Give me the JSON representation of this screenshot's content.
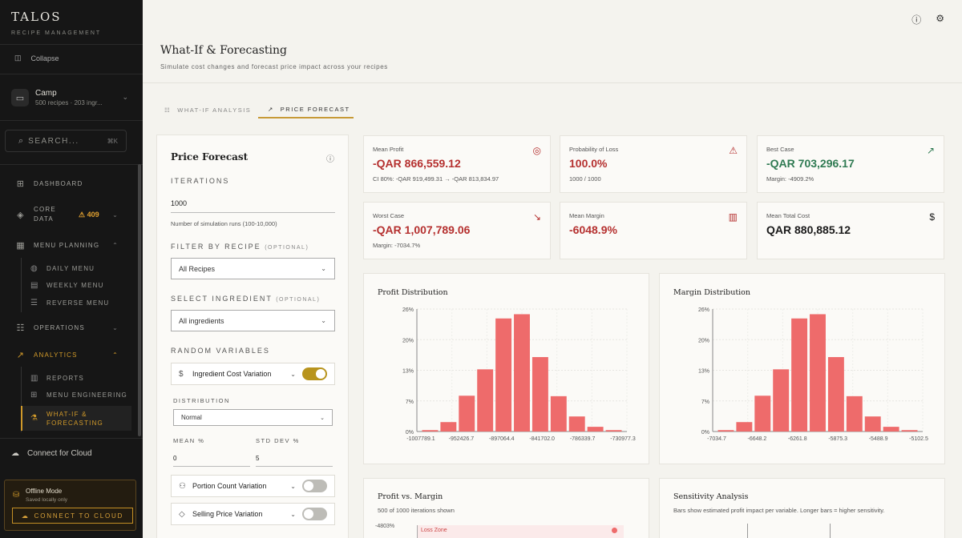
{
  "sidebar": {
    "brand": "TALOS",
    "brand_sub": "RECIPE MANAGEMENT",
    "collapse_label": "Collapse",
    "workspace": {
      "name": "Camp",
      "meta": "500 recipes · 203 ingr..."
    },
    "search": {
      "placeholder": "SEARCH...",
      "shortcut": "⌘K"
    },
    "nav": {
      "dashboard": "DASHBOARD",
      "core_data": "CORE DATA",
      "core_data_badge": "409",
      "menu_planning": "MENU PLANNING",
      "daily_menu": "DAILY MENU",
      "weekly_menu": "WEEKLY MENU",
      "reverse_menu": "REVERSE MENU",
      "operations": "OPERATIONS",
      "analytics": "ANALYTICS",
      "reports": "REPORTS",
      "menu_engineering": "MENU ENGINEERING",
      "what_if": "WHAT-IF & FORECASTING"
    },
    "cloud_link": "Connect for Cloud",
    "offline": {
      "title": "Offline Mode",
      "subtitle": "Saved locally only",
      "button": "CONNECT TO CLOUD"
    }
  },
  "header": {
    "title": "What-If & Forecasting",
    "subtitle": "Simulate cost changes and forecast price impact across your recipes"
  },
  "tabs": [
    {
      "label": "WHAT-IF ANALYSIS",
      "icon": "sliders-icon"
    },
    {
      "label": "PRICE FORECAST",
      "icon": "trending-up-icon"
    }
  ],
  "form": {
    "title": "Price Forecast",
    "iterations_label": "ITERATIONS",
    "iterations_value": "1000",
    "iterations_hint": "Number of simulation runs (100-10,000)",
    "filter_label": "FILTER BY RECIPE",
    "optional": "(OPTIONAL)",
    "filter_value": "All Recipes",
    "ingredient_label": "SELECT INGREDIENT",
    "ingredient_value": "All ingredients",
    "random_label": "RANDOM VARIABLES",
    "var1": "Ingredient Cost Variation",
    "distribution_label": "DISTRIBUTION",
    "distribution_value": "Normal",
    "mean_label": "MEAN %",
    "mean_value": "0",
    "std_label": "STD DEV %",
    "std_value": "5",
    "var2": "Portion Count Variation",
    "var3": "Selling Price Variation"
  },
  "stats": [
    {
      "title": "Mean Profit",
      "value": "-QAR 866,559.12",
      "sub": "CI 80%: -QAR 919,499.31 → -QAR 813,834.97",
      "icon": "target-icon",
      "tone": "neg"
    },
    {
      "title": "Probability of Loss",
      "value": "100.0%",
      "sub": "1000 / 1000",
      "icon": "warning-icon",
      "tone": "neg"
    },
    {
      "title": "Best Case",
      "value": "-QAR 703,296.17",
      "sub": "Margin: -4909.2%",
      "icon": "trending-up-icon",
      "tone": "pos"
    },
    {
      "title": "Worst Case",
      "value": "-QAR 1,007,789.06",
      "sub": "Margin: -7034.7%",
      "icon": "trending-down-icon",
      "tone": "neg"
    },
    {
      "title": "Mean Margin",
      "value": "-6048.9%",
      "sub": "",
      "icon": "bar-chart-icon",
      "tone": "neg"
    },
    {
      "title": "Mean Total Cost",
      "value": "QAR 880,885.12",
      "sub": "",
      "icon": "dollar-icon",
      "tone": "neu"
    }
  ],
  "chart_data": [
    {
      "type": "bar",
      "title": "Profit Distribution",
      "yticks": [
        "26%",
        "20%",
        "13%",
        "7%",
        "0%"
      ],
      "ylim": [
        0,
        26
      ],
      "xticks": [
        "-1007789.1",
        "-952426.7",
        "-897064.4",
        "-841702.0",
        "-786339.7",
        "-730977.3"
      ],
      "values": [
        0.3,
        2,
        7.6,
        13.2,
        24,
        24.9,
        15.8,
        7.5,
        3.2,
        1,
        0.3
      ],
      "color": "#ee6b6b"
    },
    {
      "type": "bar",
      "title": "Margin Distribution",
      "yticks": [
        "26%",
        "20%",
        "13%",
        "7%",
        "0%"
      ],
      "ylim": [
        0,
        26
      ],
      "xticks": [
        "-7034.7",
        "-6648.2",
        "-6261.8",
        "-5875.3",
        "-5488.9",
        "-5102.5"
      ],
      "values": [
        0.3,
        2,
        7.6,
        13.2,
        24,
        24.9,
        15.8,
        7.5,
        3.2,
        1,
        0.3
      ],
      "color": "#ee6b6b"
    },
    {
      "type": "scatter",
      "title": "Profit vs. Margin",
      "subtitle": "500 of 1000 iterations shown",
      "ytick": "-4803%",
      "zone_label": "Loss Zone"
    },
    {
      "type": "bar",
      "title": "Sensitivity Analysis",
      "subtitle": "Bars show estimated profit impact per variable. Longer bars = higher sensitivity."
    }
  ],
  "colors": {
    "accent": "#c79a36",
    "negative": "#b5302f",
    "positive": "#2f7a52",
    "bar": "#ee6b6b"
  }
}
